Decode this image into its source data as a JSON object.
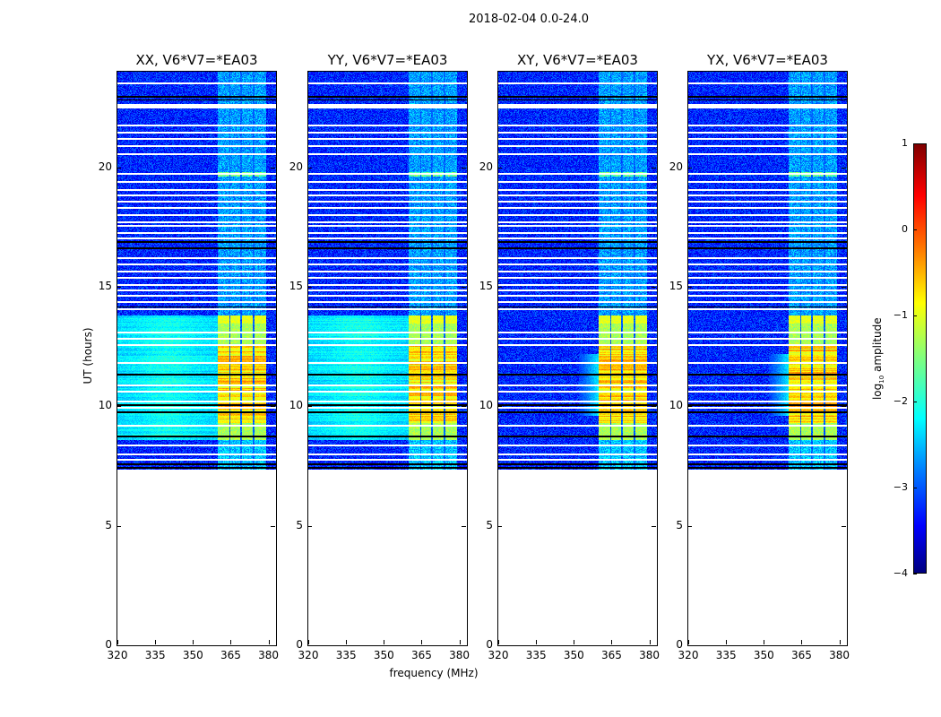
{
  "chart_data": {
    "type": "heatmap",
    "title": "2018-02-04 0.0-24.0",
    "xlabel": "frequency (MHz)",
    "ylabel": "UT (hours)",
    "xlim": [
      320,
      383
    ],
    "ylim": [
      0,
      24
    ],
    "xticks": [
      320,
      335,
      350,
      365,
      380
    ],
    "yticks": [
      0,
      5,
      10,
      15,
      20
    ],
    "grid": false,
    "panels": [
      {
        "title": "XX, V6*V7=*EA03",
        "pol": "XX",
        "cross_hand": false
      },
      {
        "title": "YY, V6*V7=*EA03",
        "pol": "YY",
        "cross_hand": false
      },
      {
        "title": "XY, V6*V7=*EA03",
        "pol": "XY",
        "cross_hand": true
      },
      {
        "title": "YX, V6*V7=*EA03",
        "pol": "YX",
        "cross_hand": true
      }
    ],
    "data_ut_range": [
      7.35,
      24.0
    ],
    "background_log_amp": -3.2,
    "parallel_hand_background_ut": [
      8.6,
      13.8
    ],
    "parallel_hand_background_log_amp": -2.3,
    "rfi_channels_mhz": [
      [
        360,
        364.4
      ],
      [
        364.8,
        368.6
      ],
      [
        369.6,
        373.6
      ],
      [
        374.6,
        379
      ]
    ],
    "rfi_log_amp_quiet": -2.2,
    "strong_rfi_ut": [
      9.3,
      12.6
    ],
    "strong_rfi_log_amp": -0.4,
    "flagged_ut": [
      23.51,
      22.6,
      22.5,
      21.75,
      21.45,
      21.19,
      20.89,
      20.55,
      19.72,
      19.39,
      19.05,
      18.82,
      18.56,
      18.3,
      18.0,
      17.7,
      17.55,
      17.25,
      17.02,
      16.2,
      15.94,
      15.64,
      15.37,
      15.07,
      14.85,
      14.62,
      14.36,
      14.06,
      13.09,
      12.82,
      12.56,
      11.81,
      10.87,
      10.61,
      10.2,
      9.94,
      9.19,
      8.36,
      7.99,
      7.76
    ],
    "dark_ut": [
      22.95,
      22.82,
      16.87,
      16.62,
      14.15,
      11.32,
      10.05,
      9.75,
      8.74,
      7.57,
      7.43
    ],
    "colorbar": {
      "label_main": "log",
      "label_sub": "10",
      "label_rest": " amplitude",
      "ticks": [
        1,
        0,
        -1,
        -2,
        -3,
        -4
      ],
      "range": [
        -4,
        1
      ],
      "colormap": "jet"
    }
  }
}
